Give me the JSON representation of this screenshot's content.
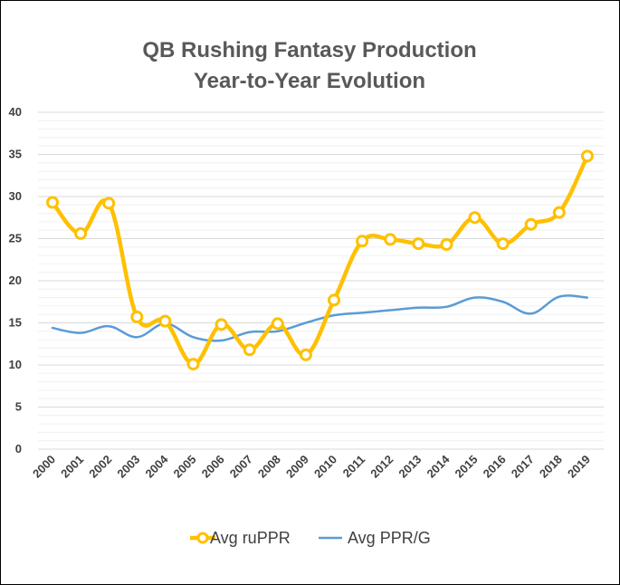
{
  "chart_data": {
    "type": "line",
    "title": [
      "QB Rushing Fantasy Production",
      "Year-to-Year Evolution"
    ],
    "xlabel": "",
    "ylabel": "",
    "x": [
      "2000",
      "2001",
      "2002",
      "2003",
      "2004",
      "2005",
      "2006",
      "2007",
      "2008",
      "2009",
      "2010",
      "2011",
      "2012",
      "2013",
      "2014",
      "2015",
      "2016",
      "2017",
      "2018",
      "2019"
    ],
    "ylim": [
      0,
      40
    ],
    "yticks": [
      0,
      5,
      10,
      15,
      20,
      25,
      30,
      35,
      40
    ],
    "grid": true,
    "legend_position": "bottom",
    "series": [
      {
        "name": "Avg ruPPR",
        "color": "#FFC000",
        "marker": "circle",
        "values": [
          29.3,
          25.6,
          29.2,
          15.7,
          15.2,
          10.1,
          14.8,
          11.8,
          14.9,
          11.2,
          17.7,
          24.7,
          24.9,
          24.4,
          24.3,
          27.5,
          24.4,
          26.7,
          28.1,
          34.8
        ]
      },
      {
        "name": "Avg PPR/G",
        "color": "#5B9BD5",
        "marker": "none",
        "values": [
          14.4,
          13.8,
          14.6,
          13.3,
          14.9,
          13.3,
          12.9,
          13.9,
          14.0,
          15.0,
          15.9,
          16.2,
          16.5,
          16.8,
          16.9,
          18.0,
          17.5,
          16.1,
          18.1,
          18.0
        ]
      }
    ]
  }
}
